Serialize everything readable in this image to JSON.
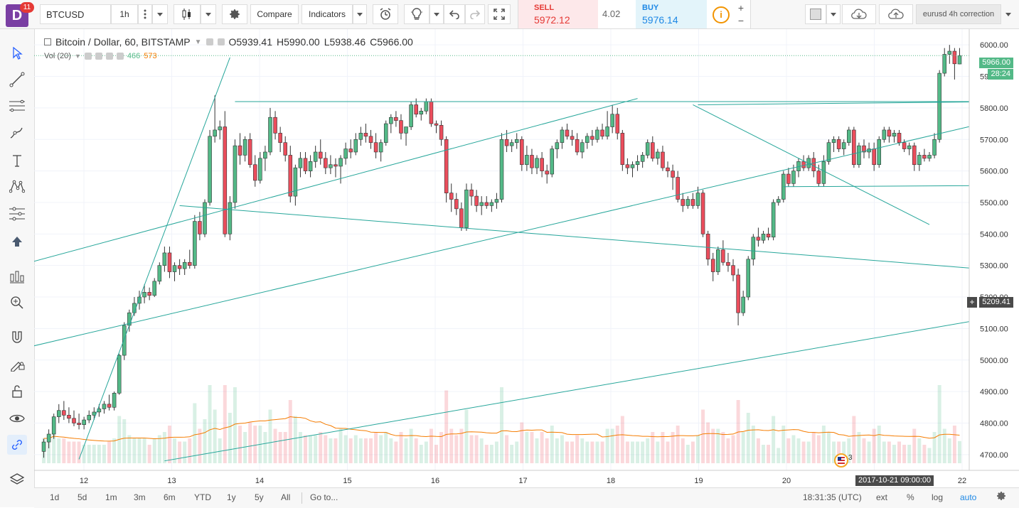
{
  "app": {
    "logo_letter": "D",
    "notification_count": "11"
  },
  "toolbar": {
    "symbol": "BTCUSD",
    "interval": "1h",
    "compare_label": "Compare",
    "indicators_label": "Indicators",
    "layout_name": "eurusd 4h correction"
  },
  "trade": {
    "sell_label": "SELL",
    "sell_price": "5972.12",
    "spread": "4.02",
    "buy_label": "BUY",
    "buy_price": "5976.14",
    "info_glyph": "i"
  },
  "legend": {
    "title": "Bitcoin / Dollar, 60, BITSTAMP",
    "open": "O5939.41",
    "high": "H5990.00",
    "low": "L5938.46",
    "close": "C5966.00",
    "vol_label": "Vol (20)",
    "vol_value_1": "466",
    "vol_value_2": "573"
  },
  "price_axis": {
    "ticks": [
      "6000.00",
      "5900.00",
      "5800.00",
      "5700.00",
      "5600.00",
      "5500.00",
      "5400.00",
      "5300.00",
      "5200.00",
      "5100.00",
      "5000.00",
      "4900.00",
      "4800.00",
      "4700.00"
    ],
    "last_price": "5966.00",
    "countdown": "28:24",
    "cursor_price": "5209.41",
    "cursor_plus": "+"
  },
  "time_axis": {
    "ticks": [
      "12",
      "13",
      "14",
      "15",
      "16",
      "17",
      "18",
      "19",
      "20",
      "21",
      "22"
    ],
    "cursor_time": "2017-10-21 09:00:00"
  },
  "events_badge": "3",
  "bottombar": {
    "ranges": [
      "1d",
      "5d",
      "1m",
      "3m",
      "6m",
      "YTD",
      "1y",
      "5y",
      "All"
    ],
    "goto": "Go to...",
    "clock": "18:31:35 (UTC)",
    "ext": "ext",
    "percent": "%",
    "log": "log",
    "auto": "auto"
  },
  "colors": {
    "up": "#53b987",
    "down": "#eb4d5c",
    "trendline": "#26a69a",
    "ma": "#f57c00",
    "accent": "#1e88e5"
  },
  "left_tools": [
    "cursor-icon",
    "trend-line-icon",
    "fib-lines-icon",
    "brush-icon",
    "text-icon",
    "pattern-icon",
    "measure-icon",
    "arrow-up-icon",
    "long-position-icon",
    "zoom-icon",
    "magnet-icon",
    "lock-drawing-icon",
    "unlock-icon",
    "eye-icon",
    "link-icon",
    "layers-icon"
  ],
  "chart_data": {
    "type": "candlestick",
    "symbol": "BTCUSD",
    "ylim": [
      4650,
      6050
    ],
    "series": [
      {
        "o": 4710,
        "h": 4750,
        "l": 4690,
        "c": 4740
      },
      {
        "o": 4740,
        "h": 4780,
        "l": 4720,
        "c": 4765
      },
      {
        "o": 4765,
        "h": 4830,
        "l": 4750,
        "c": 4820
      },
      {
        "o": 4820,
        "h": 4860,
        "l": 4800,
        "c": 4840
      },
      {
        "o": 4840,
        "h": 4870,
        "l": 4810,
        "c": 4825
      },
      {
        "o": 4825,
        "h": 4850,
        "l": 4800,
        "c": 4815
      },
      {
        "o": 4815,
        "h": 4840,
        "l": 4790,
        "c": 4800
      },
      {
        "o": 4800,
        "h": 4830,
        "l": 4780,
        "c": 4795
      },
      {
        "o": 4795,
        "h": 4820,
        "l": 4780,
        "c": 4810
      },
      {
        "o": 4810,
        "h": 4840,
        "l": 4800,
        "c": 4825
      },
      {
        "o": 4825,
        "h": 4850,
        "l": 4810,
        "c": 4835
      },
      {
        "o": 4835,
        "h": 4860,
        "l": 4820,
        "c": 4845
      },
      {
        "o": 4845,
        "h": 4870,
        "l": 4830,
        "c": 4860
      },
      {
        "o": 4860,
        "h": 4890,
        "l": 4840,
        "c": 4850
      },
      {
        "o": 4850,
        "h": 4900,
        "l": 4840,
        "c": 4895
      },
      {
        "o": 4895,
        "h": 5020,
        "l": 4890,
        "c": 5015
      },
      {
        "o": 5015,
        "h": 5120,
        "l": 5000,
        "c": 5110
      },
      {
        "o": 5110,
        "h": 5160,
        "l": 5090,
        "c": 5150
      },
      {
        "o": 5150,
        "h": 5200,
        "l": 5140,
        "c": 5180
      },
      {
        "o": 5180,
        "h": 5220,
        "l": 5160,
        "c": 5200
      },
      {
        "o": 5200,
        "h": 5240,
        "l": 5180,
        "c": 5215
      },
      {
        "o": 5215,
        "h": 5230,
        "l": 5190,
        "c": 5205
      },
      {
        "o": 5205,
        "h": 5260,
        "l": 5200,
        "c": 5250
      },
      {
        "o": 5250,
        "h": 5310,
        "l": 5240,
        "c": 5300
      },
      {
        "o": 5300,
        "h": 5360,
        "l": 5280,
        "c": 5340
      },
      {
        "o": 5340,
        "h": 5360,
        "l": 5260,
        "c": 5280
      },
      {
        "o": 5280,
        "h": 5310,
        "l": 5250,
        "c": 5300
      },
      {
        "o": 5300,
        "h": 5320,
        "l": 5270,
        "c": 5290
      },
      {
        "o": 5290,
        "h": 5320,
        "l": 5270,
        "c": 5310
      },
      {
        "o": 5310,
        "h": 5350,
        "l": 5290,
        "c": 5300
      },
      {
        "o": 5300,
        "h": 5460,
        "l": 5290,
        "c": 5440
      },
      {
        "o": 5440,
        "h": 5470,
        "l": 5380,
        "c": 5400
      },
      {
        "o": 5400,
        "h": 5510,
        "l": 5390,
        "c": 5500
      },
      {
        "o": 5500,
        "h": 5730,
        "l": 5490,
        "c": 5710
      },
      {
        "o": 5710,
        "h": 5840,
        "l": 5690,
        "c": 5730
      },
      {
        "o": 5730,
        "h": 5760,
        "l": 5700,
        "c": 5740
      },
      {
        "o": 5740,
        "h": 5790,
        "l": 5390,
        "c": 5400
      },
      {
        "o": 5400,
        "h": 5520,
        "l": 5380,
        "c": 5500
      },
      {
        "o": 5500,
        "h": 5700,
        "l": 5480,
        "c": 5680
      },
      {
        "o": 5680,
        "h": 5720,
        "l": 5620,
        "c": 5650
      },
      {
        "o": 5650,
        "h": 5710,
        "l": 5630,
        "c": 5700
      },
      {
        "o": 5700,
        "h": 5720,
        "l": 5610,
        "c": 5620
      },
      {
        "o": 5620,
        "h": 5650,
        "l": 5550,
        "c": 5570
      },
      {
        "o": 5570,
        "h": 5660,
        "l": 5560,
        "c": 5640
      },
      {
        "o": 5640,
        "h": 5680,
        "l": 5600,
        "c": 5660
      },
      {
        "o": 5660,
        "h": 5800,
        "l": 5650,
        "c": 5770
      },
      {
        "o": 5770,
        "h": 5790,
        "l": 5700,
        "c": 5720
      },
      {
        "o": 5720,
        "h": 5740,
        "l": 5660,
        "c": 5690
      },
      {
        "o": 5690,
        "h": 5710,
        "l": 5630,
        "c": 5650
      },
      {
        "o": 5650,
        "h": 5680,
        "l": 5500,
        "c": 5520
      },
      {
        "o": 5520,
        "h": 5620,
        "l": 5490,
        "c": 5610
      },
      {
        "o": 5610,
        "h": 5660,
        "l": 5580,
        "c": 5640
      },
      {
        "o": 5640,
        "h": 5660,
        "l": 5590,
        "c": 5600
      },
      {
        "o": 5600,
        "h": 5650,
        "l": 5580,
        "c": 5630
      },
      {
        "o": 5630,
        "h": 5680,
        "l": 5610,
        "c": 5660
      },
      {
        "o": 5660,
        "h": 5700,
        "l": 5620,
        "c": 5640
      },
      {
        "o": 5640,
        "h": 5660,
        "l": 5590,
        "c": 5610
      },
      {
        "o": 5610,
        "h": 5650,
        "l": 5590,
        "c": 5620
      },
      {
        "o": 5620,
        "h": 5640,
        "l": 5580,
        "c": 5615
      },
      {
        "o": 5615,
        "h": 5650,
        "l": 5560,
        "c": 5640
      },
      {
        "o": 5640,
        "h": 5690,
        "l": 5620,
        "c": 5670
      },
      {
        "o": 5670,
        "h": 5700,
        "l": 5640,
        "c": 5660
      },
      {
        "o": 5660,
        "h": 5720,
        "l": 5650,
        "c": 5700
      },
      {
        "o": 5700,
        "h": 5740,
        "l": 5680,
        "c": 5720
      },
      {
        "o": 5720,
        "h": 5750,
        "l": 5690,
        "c": 5710
      },
      {
        "o": 5710,
        "h": 5730,
        "l": 5670,
        "c": 5690
      },
      {
        "o": 5690,
        "h": 5720,
        "l": 5640,
        "c": 5660
      },
      {
        "o": 5660,
        "h": 5700,
        "l": 5630,
        "c": 5690
      },
      {
        "o": 5690,
        "h": 5760,
        "l": 5680,
        "c": 5750
      },
      {
        "o": 5750,
        "h": 5780,
        "l": 5720,
        "c": 5770
      },
      {
        "o": 5770,
        "h": 5790,
        "l": 5740,
        "c": 5760
      },
      {
        "o": 5760,
        "h": 5780,
        "l": 5700,
        "c": 5720
      },
      {
        "o": 5720,
        "h": 5740,
        "l": 5680,
        "c": 5740
      },
      {
        "o": 5740,
        "h": 5820,
        "l": 5730,
        "c": 5810
      },
      {
        "o": 5810,
        "h": 5830,
        "l": 5770,
        "c": 5780
      },
      {
        "o": 5780,
        "h": 5800,
        "l": 5760,
        "c": 5790
      },
      {
        "o": 5790,
        "h": 5830,
        "l": 5780,
        "c": 5820
      },
      {
        "o": 5820,
        "h": 5830,
        "l": 5740,
        "c": 5750
      },
      {
        "o": 5750,
        "h": 5760,
        "l": 5720,
        "c": 5745
      },
      {
        "o": 5745,
        "h": 5760,
        "l": 5680,
        "c": 5700
      },
      {
        "o": 5700,
        "h": 5710,
        "l": 5500,
        "c": 5530
      },
      {
        "o": 5530,
        "h": 5560,
        "l": 5470,
        "c": 5510
      },
      {
        "o": 5510,
        "h": 5530,
        "l": 5460,
        "c": 5480
      },
      {
        "o": 5480,
        "h": 5500,
        "l": 5410,
        "c": 5420
      },
      {
        "o": 5420,
        "h": 5560,
        "l": 5410,
        "c": 5540
      },
      {
        "o": 5540,
        "h": 5560,
        "l": 5490,
        "c": 5520
      },
      {
        "o": 5520,
        "h": 5540,
        "l": 5470,
        "c": 5490
      },
      {
        "o": 5490,
        "h": 5520,
        "l": 5460,
        "c": 5500
      },
      {
        "o": 5500,
        "h": 5520,
        "l": 5480,
        "c": 5490
      },
      {
        "o": 5490,
        "h": 5510,
        "l": 5470,
        "c": 5500
      },
      {
        "o": 5500,
        "h": 5530,
        "l": 5480,
        "c": 5510
      },
      {
        "o": 5510,
        "h": 5720,
        "l": 5500,
        "c": 5700
      },
      {
        "o": 5700,
        "h": 5730,
        "l": 5660,
        "c": 5680
      },
      {
        "o": 5680,
        "h": 5700,
        "l": 5660,
        "c": 5690
      },
      {
        "o": 5690,
        "h": 5720,
        "l": 5670,
        "c": 5700
      },
      {
        "o": 5700,
        "h": 5710,
        "l": 5600,
        "c": 5620
      },
      {
        "o": 5620,
        "h": 5680,
        "l": 5600,
        "c": 5650
      },
      {
        "o": 5650,
        "h": 5670,
        "l": 5590,
        "c": 5610
      },
      {
        "o": 5610,
        "h": 5650,
        "l": 5590,
        "c": 5640
      },
      {
        "o": 5640,
        "h": 5660,
        "l": 5580,
        "c": 5600
      },
      {
        "o": 5600,
        "h": 5620,
        "l": 5560,
        "c": 5590
      },
      {
        "o": 5590,
        "h": 5680,
        "l": 5580,
        "c": 5670
      },
      {
        "o": 5670,
        "h": 5700,
        "l": 5640,
        "c": 5690
      },
      {
        "o": 5690,
        "h": 5740,
        "l": 5670,
        "c": 5730
      },
      {
        "o": 5730,
        "h": 5750,
        "l": 5700,
        "c": 5710
      },
      {
        "o": 5710,
        "h": 5730,
        "l": 5680,
        "c": 5700
      },
      {
        "o": 5700,
        "h": 5720,
        "l": 5650,
        "c": 5660
      },
      {
        "o": 5660,
        "h": 5700,
        "l": 5640,
        "c": 5690
      },
      {
        "o": 5690,
        "h": 5720,
        "l": 5670,
        "c": 5710
      },
      {
        "o": 5710,
        "h": 5730,
        "l": 5680,
        "c": 5700
      },
      {
        "o": 5700,
        "h": 5740,
        "l": 5690,
        "c": 5730
      },
      {
        "o": 5730,
        "h": 5750,
        "l": 5700,
        "c": 5710
      },
      {
        "o": 5710,
        "h": 5790,
        "l": 5700,
        "c": 5740
      },
      {
        "o": 5740,
        "h": 5810,
        "l": 5720,
        "c": 5780
      },
      {
        "o": 5780,
        "h": 5800,
        "l": 5700,
        "c": 5720
      },
      {
        "o": 5720,
        "h": 5730,
        "l": 5600,
        "c": 5620
      },
      {
        "o": 5620,
        "h": 5640,
        "l": 5590,
        "c": 5610
      },
      {
        "o": 5610,
        "h": 5630,
        "l": 5580,
        "c": 5620
      },
      {
        "o": 5620,
        "h": 5650,
        "l": 5600,
        "c": 5630
      },
      {
        "o": 5630,
        "h": 5660,
        "l": 5610,
        "c": 5650
      },
      {
        "o": 5650,
        "h": 5700,
        "l": 5640,
        "c": 5690
      },
      {
        "o": 5690,
        "h": 5710,
        "l": 5630,
        "c": 5640
      },
      {
        "o": 5640,
        "h": 5670,
        "l": 5620,
        "c": 5660
      },
      {
        "o": 5660,
        "h": 5680,
        "l": 5600,
        "c": 5610
      },
      {
        "o": 5610,
        "h": 5630,
        "l": 5580,
        "c": 5600
      },
      {
        "o": 5600,
        "h": 5620,
        "l": 5540,
        "c": 5580
      },
      {
        "o": 5580,
        "h": 5600,
        "l": 5500,
        "c": 5510
      },
      {
        "o": 5510,
        "h": 5530,
        "l": 5470,
        "c": 5490
      },
      {
        "o": 5490,
        "h": 5520,
        "l": 5480,
        "c": 5510
      },
      {
        "o": 5510,
        "h": 5530,
        "l": 5480,
        "c": 5490
      },
      {
        "o": 5490,
        "h": 5550,
        "l": 5480,
        "c": 5530
      },
      {
        "o": 5530,
        "h": 5540,
        "l": 5390,
        "c": 5400
      },
      {
        "o": 5400,
        "h": 5410,
        "l": 5300,
        "c": 5320
      },
      {
        "o": 5320,
        "h": 5340,
        "l": 5250,
        "c": 5280
      },
      {
        "o": 5280,
        "h": 5360,
        "l": 5270,
        "c": 5350
      },
      {
        "o": 5350,
        "h": 5380,
        "l": 5300,
        "c": 5310
      },
      {
        "o": 5310,
        "h": 5340,
        "l": 5280,
        "c": 5300
      },
      {
        "o": 5300,
        "h": 5320,
        "l": 5250,
        "c": 5270
      },
      {
        "o": 5270,
        "h": 5290,
        "l": 5110,
        "c": 5150
      },
      {
        "o": 5150,
        "h": 5220,
        "l": 5140,
        "c": 5200
      },
      {
        "o": 5200,
        "h": 5330,
        "l": 5190,
        "c": 5320
      },
      {
        "o": 5320,
        "h": 5400,
        "l": 5300,
        "c": 5390
      },
      {
        "o": 5390,
        "h": 5420,
        "l": 5360,
        "c": 5380
      },
      {
        "o": 5380,
        "h": 5410,
        "l": 5370,
        "c": 5400
      },
      {
        "o": 5400,
        "h": 5420,
        "l": 5380,
        "c": 5390
      },
      {
        "o": 5390,
        "h": 5510,
        "l": 5380,
        "c": 5500
      },
      {
        "o": 5500,
        "h": 5520,
        "l": 5490,
        "c": 5510
      },
      {
        "o": 5510,
        "h": 5600,
        "l": 5500,
        "c": 5590
      },
      {
        "o": 5590,
        "h": 5610,
        "l": 5550,
        "c": 5560
      },
      {
        "o": 5560,
        "h": 5620,
        "l": 5550,
        "c": 5600
      },
      {
        "o": 5600,
        "h": 5640,
        "l": 5580,
        "c": 5630
      },
      {
        "o": 5630,
        "h": 5650,
        "l": 5600,
        "c": 5610
      },
      {
        "o": 5610,
        "h": 5650,
        "l": 5600,
        "c": 5640
      },
      {
        "o": 5640,
        "h": 5660,
        "l": 5580,
        "c": 5600
      },
      {
        "o": 5600,
        "h": 5620,
        "l": 5550,
        "c": 5560
      },
      {
        "o": 5560,
        "h": 5650,
        "l": 5550,
        "c": 5630
      },
      {
        "o": 5630,
        "h": 5700,
        "l": 5620,
        "c": 5690
      },
      {
        "o": 5690,
        "h": 5710,
        "l": 5660,
        "c": 5700
      },
      {
        "o": 5700,
        "h": 5710,
        "l": 5660,
        "c": 5670
      },
      {
        "o": 5670,
        "h": 5700,
        "l": 5650,
        "c": 5690
      },
      {
        "o": 5690,
        "h": 5740,
        "l": 5680,
        "c": 5730
      },
      {
        "o": 5730,
        "h": 5740,
        "l": 5610,
        "c": 5620
      },
      {
        "o": 5620,
        "h": 5690,
        "l": 5610,
        "c": 5680
      },
      {
        "o": 5680,
        "h": 5700,
        "l": 5640,
        "c": 5660
      },
      {
        "o": 5660,
        "h": 5690,
        "l": 5640,
        "c": 5670
      },
      {
        "o": 5670,
        "h": 5690,
        "l": 5600,
        "c": 5620
      },
      {
        "o": 5620,
        "h": 5710,
        "l": 5610,
        "c": 5700
      },
      {
        "o": 5700,
        "h": 5740,
        "l": 5690,
        "c": 5730
      },
      {
        "o": 5730,
        "h": 5740,
        "l": 5690,
        "c": 5710
      },
      {
        "o": 5710,
        "h": 5730,
        "l": 5690,
        "c": 5720
      },
      {
        "o": 5720,
        "h": 5730,
        "l": 5680,
        "c": 5690
      },
      {
        "o": 5690,
        "h": 5700,
        "l": 5660,
        "c": 5670
      },
      {
        "o": 5670,
        "h": 5690,
        "l": 5650,
        "c": 5680
      },
      {
        "o": 5680,
        "h": 5690,
        "l": 5600,
        "c": 5620
      },
      {
        "o": 5620,
        "h": 5660,
        "l": 5600,
        "c": 5650
      },
      {
        "o": 5650,
        "h": 5670,
        "l": 5630,
        "c": 5640
      },
      {
        "o": 5640,
        "h": 5660,
        "l": 5630,
        "c": 5650
      },
      {
        "o": 5650,
        "h": 5720,
        "l": 5640,
        "c": 5700
      },
      {
        "o": 5700,
        "h": 5920,
        "l": 5690,
        "c": 5910
      },
      {
        "o": 5910,
        "h": 5990,
        "l": 5900,
        "c": 5970
      },
      {
        "o": 5970,
        "h": 6000,
        "l": 5940,
        "c": 5980
      },
      {
        "o": 5980,
        "h": 5990,
        "l": 5890,
        "c": 5940
      },
      {
        "o": 5939.41,
        "h": 5990,
        "l": 5938.46,
        "c": 5966
      }
    ]
  }
}
